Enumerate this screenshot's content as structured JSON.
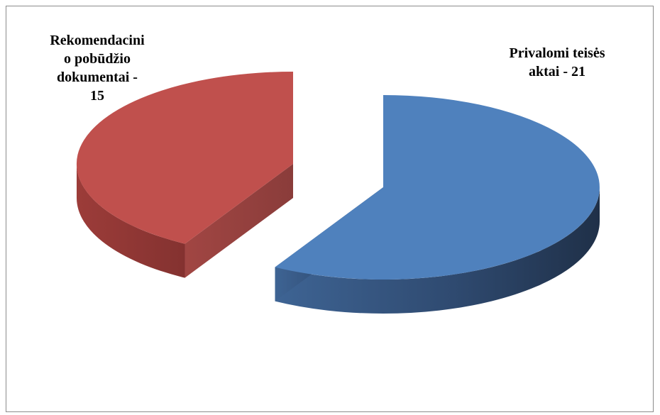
{
  "chart_data": {
    "type": "pie",
    "title": "",
    "three_d": true,
    "exploded": true,
    "slices": [
      {
        "label": "Privalomi teisės\naktai  - 21",
        "value": 21,
        "color": "#4F81BD"
      },
      {
        "label": "Rekomendacini\no pobūdžio\ndokumentai -\n15",
        "value": 15,
        "color": "#C0504D"
      }
    ]
  }
}
